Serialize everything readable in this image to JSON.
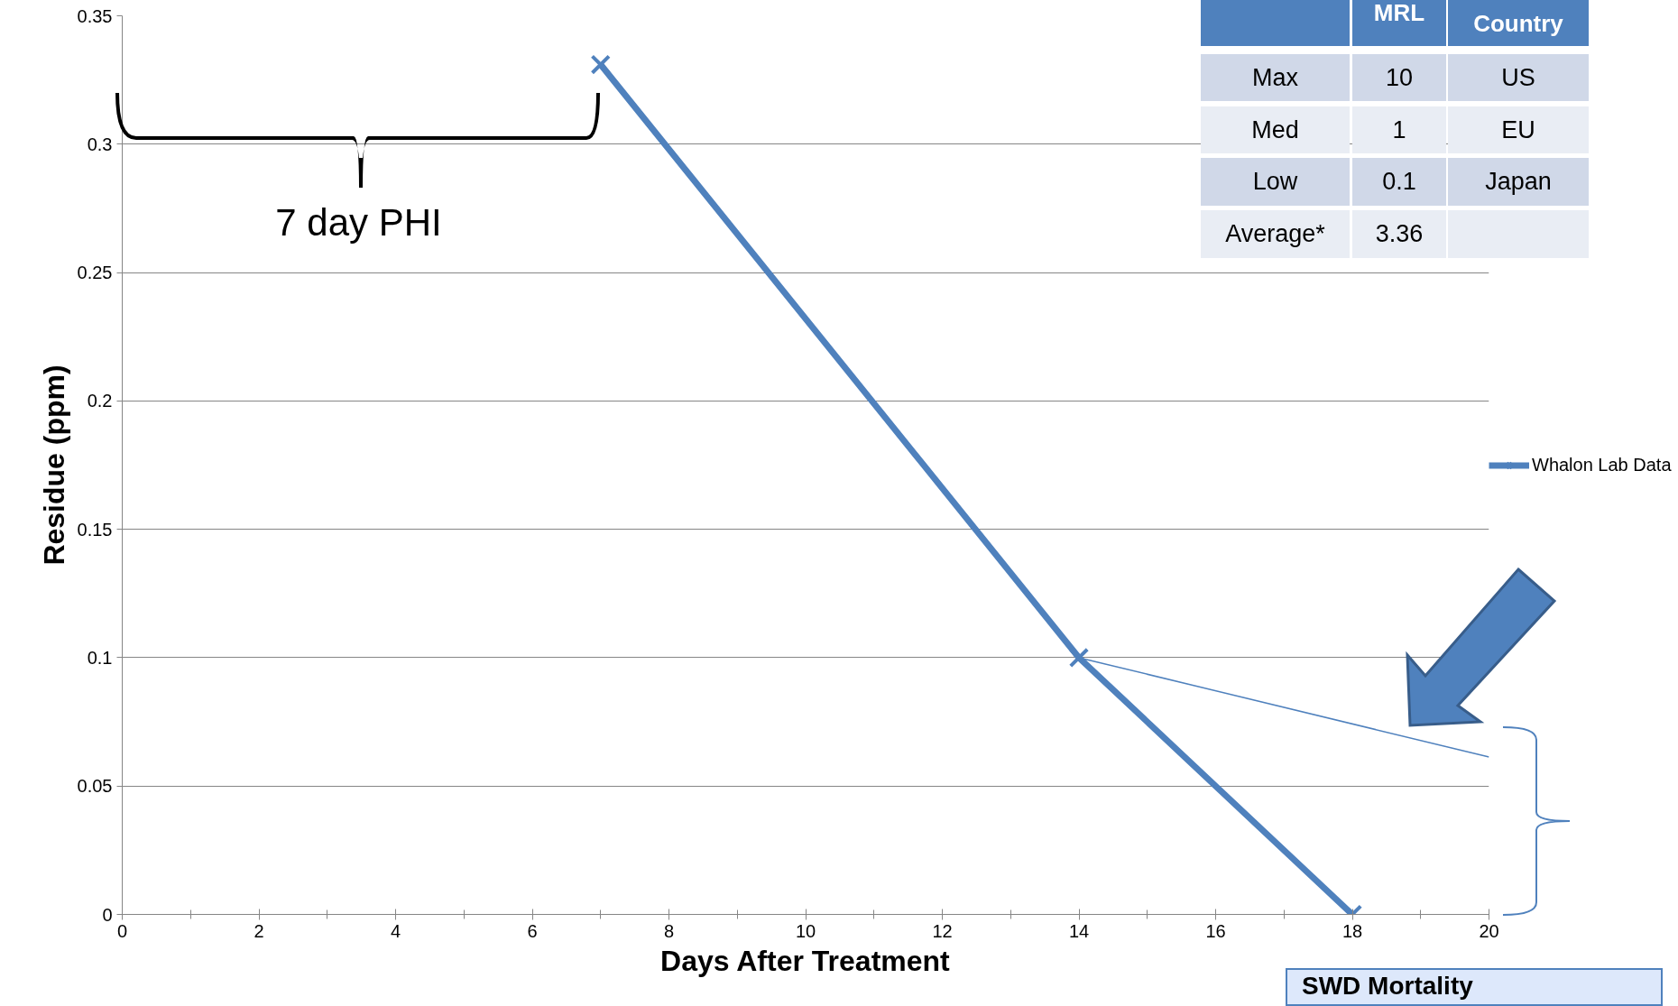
{
  "chart_data": {
    "type": "line",
    "xlabel": "Days After Treatment",
    "ylabel": "Residue (ppm)",
    "x": [
      7,
      14,
      18
    ],
    "series": [
      {
        "name": "Whalon Lab Data",
        "color": "#4f81bd",
        "values": [
          0.331,
          0.1,
          0
        ],
        "marker": "cross"
      },
      {
        "x": [
          14,
          20
        ],
        "color": "#4f81bd",
        "values": [
          0.1,
          0.0613
        ],
        "marker": "none"
      }
    ],
    "xlim": [
      0,
      20
    ],
    "xticks": [
      0,
      2,
      4,
      6,
      8,
      10,
      12,
      14,
      16,
      18,
      20
    ],
    "ylim": [
      0,
      0.35
    ],
    "yticks": [
      0,
      0.05,
      0.1,
      0.15,
      0.2,
      0.25,
      0.3,
      0.35
    ],
    "grid": "y",
    "legend": "right",
    "line_style": "solid",
    "annotations": [
      "7 day PHI",
      "MRL",
      "Country",
      "Max",
      "10",
      "US",
      "Med",
      "1",
      "EU",
      "Low",
      "0.1",
      "Japan",
      "Average*",
      "3.36",
      "SWD Mortality"
    ]
  }
}
